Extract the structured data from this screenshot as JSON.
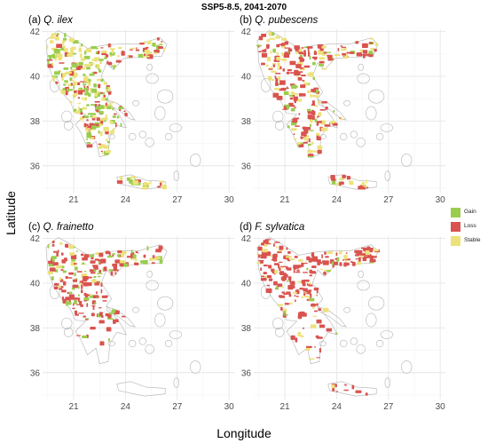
{
  "figure": {
    "title": "SSP5-8.5, 2041-2070",
    "xlabel": "Longitude",
    "ylabel": "Latitude"
  },
  "axes": {
    "x_ticks": [
      "21",
      "24",
      "27",
      "30"
    ],
    "y_ticks": [
      "36",
      "38",
      "40",
      "42"
    ],
    "x_values": [
      21,
      24,
      27,
      30
    ],
    "y_values": [
      36,
      38,
      40,
      42
    ],
    "xlim": [
      19.2,
      30.3
    ],
    "ylim": [
      34.8,
      42.1
    ]
  },
  "legend": {
    "items": [
      {
        "label": "Gain",
        "color": "#9ACD4E"
      },
      {
        "label": "Loss",
        "color": "#D9534F"
      },
      {
        "label": "Stable",
        "color": "#EDE27A"
      }
    ]
  },
  "colors": {
    "background": "#ffffff",
    "grid_major": "#e6e6e6",
    "grid_minor": "#f3f3f3",
    "coastline": "#b3b3b3",
    "gain": "#9ACD4E",
    "loss": "#D9534F",
    "stable": "#EDE27A"
  },
  "panels": [
    {
      "tag": "(a)",
      "species": "Q. ilex",
      "mix": {
        "gain": 0.35,
        "loss": 0.25,
        "stable": 0.4
      }
    },
    {
      "tag": "(b)",
      "species": "Q. pubescens",
      "mix": {
        "gain": 0.12,
        "loss": 0.58,
        "stable": 0.3
      }
    },
    {
      "tag": "(c)",
      "species": "Q. frainetto",
      "mix": {
        "gain": 0.22,
        "loss": 0.65,
        "stable": 0.13
      }
    },
    {
      "tag": "(d)",
      "species": "F. sylvatica",
      "mix": {
        "gain": 0.05,
        "loss": 0.75,
        "stable": 0.2
      }
    }
  ]
}
